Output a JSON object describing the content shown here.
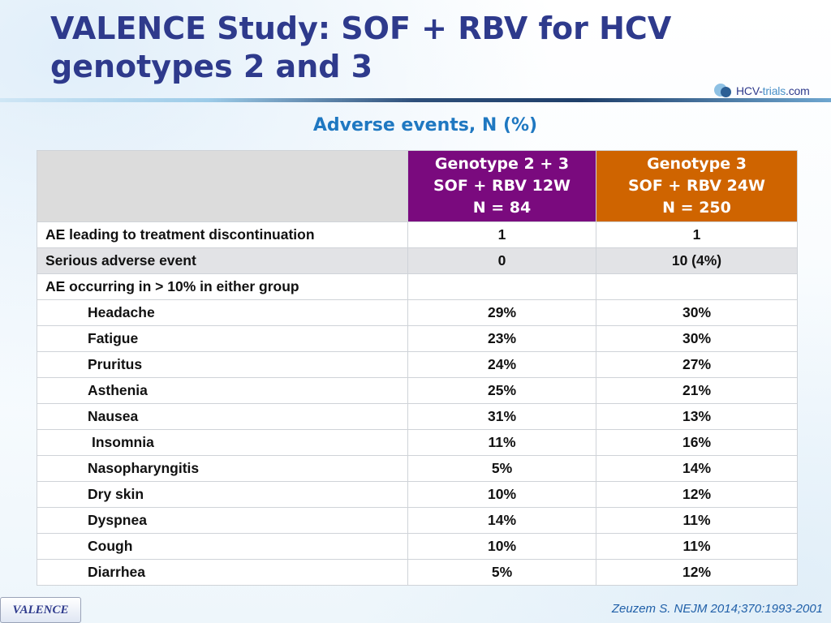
{
  "title": {
    "line1": "VALENCE Study: SOF + RBV for HCV",
    "line2": "genotypes 2 and 3"
  },
  "logo": {
    "brand": "HCV",
    "dash": "-",
    "accent": "trials",
    "suffix": ".com"
  },
  "subtitle": "Adverse events, N (%)",
  "table": {
    "header": {
      "col1": {
        "line1": "Genotype 2 + 3",
        "line2": "SOF + RBV 12W",
        "line3": "N = 84"
      },
      "col2": {
        "line1": "Genotype 3",
        "line2": "SOF + RBV 24W",
        "line3": "N = 250"
      }
    },
    "rows": [
      {
        "label": "AE leading to treatment discontinuation",
        "v1": "1",
        "v2": "1"
      },
      {
        "label": "Serious adverse event",
        "v1": "0",
        "v2": "10 (4%)"
      },
      {
        "label": "AE occurring in > 10% in either group",
        "v1": "",
        "v2": ""
      },
      {
        "label": "Headache",
        "v1": "29%",
        "v2": "30%"
      },
      {
        "label": "Fatigue",
        "v1": "23%",
        "v2": "30%"
      },
      {
        "label": "Pruritus",
        "v1": "24%",
        "v2": "27%"
      },
      {
        "label": "Asthenia",
        "v1": "25%",
        "v2": "21%"
      },
      {
        "label": "Nausea",
        "v1": "31%",
        "v2": "13%"
      },
      {
        "label": "Insomnia",
        "v1": "11%",
        "v2": "16%"
      },
      {
        "label": "Nasopharyngitis",
        "v1": "5%",
        "v2": "14%"
      },
      {
        "label": "Dry skin",
        "v1": "10%",
        "v2": "12%"
      },
      {
        "label": "Dyspnea",
        "v1": "14%",
        "v2": "11%"
      },
      {
        "label": "Cough",
        "v1": "10%",
        "v2": "11%"
      },
      {
        "label": "Diarrhea",
        "v1": "5%",
        "v2": "12%"
      }
    ]
  },
  "colors": {
    "title": "#2e3a8c",
    "subtitle": "#1f78c1",
    "genotype23": "#7a0a7e",
    "genotype3": "#cf6400"
  },
  "citation": "Zeuzem S. NEJM 2014;370:1993-2001",
  "tag": "VALENCE"
}
